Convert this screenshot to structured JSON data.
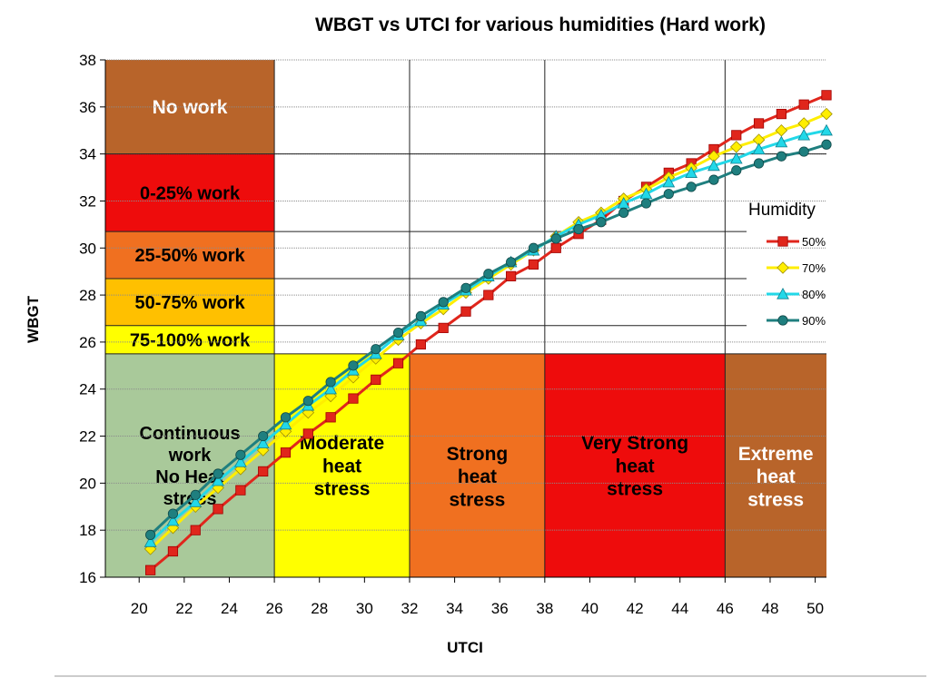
{
  "chart_data": {
    "type": "line",
    "title": "WBGT vs UTCI for various humidities   (Hard work)",
    "xlabel": "UTCI",
    "ylabel": "WBGT",
    "xlim": [
      18.5,
      50.5
    ],
    "ylim": [
      16,
      38
    ],
    "xticks": [
      20,
      22,
      24,
      26,
      28,
      30,
      32,
      34,
      36,
      38,
      40,
      42,
      44,
      46,
      48,
      50
    ],
    "yticks": [
      16,
      18,
      20,
      22,
      24,
      26,
      28,
      30,
      32,
      34,
      36,
      38
    ],
    "grid": true,
    "legend": {
      "title": "Humidity",
      "placement": "right"
    },
    "x": [
      20.5,
      21.5,
      22.5,
      23.5,
      24.5,
      25.5,
      26.5,
      27.5,
      28.5,
      29.5,
      30.5,
      31.5,
      32.5,
      33.5,
      34.5,
      35.5,
      36.5,
      37.5,
      38.5,
      39.5,
      40.5,
      41.5,
      42.5,
      43.5,
      44.5,
      45.5,
      46.5,
      47.5,
      48.5,
      49.5,
      50.5
    ],
    "series": [
      {
        "name": "50%",
        "color": "#e0261c",
        "marker": "square",
        "values": [
          16.3,
          17.1,
          18.0,
          18.9,
          19.7,
          20.5,
          21.3,
          22.1,
          22.8,
          23.6,
          24.4,
          25.1,
          25.9,
          26.6,
          27.3,
          28.0,
          28.8,
          29.3,
          30.0,
          30.6,
          31.2,
          32.0,
          32.6,
          33.2,
          33.6,
          34.2,
          34.8,
          35.3,
          35.7,
          36.1,
          36.5
        ]
      },
      {
        "name": "70%",
        "color": "#ffee00",
        "marker": "diamond",
        "values": [
          17.2,
          18.1,
          19.0,
          19.8,
          20.6,
          21.4,
          22.2,
          23.0,
          23.7,
          24.5,
          25.3,
          26.1,
          26.8,
          27.4,
          28.1,
          28.7,
          29.3,
          29.9,
          30.5,
          31.1,
          31.5,
          32.1,
          32.5,
          33.0,
          33.4,
          33.9,
          34.3,
          34.6,
          35.0,
          35.3,
          35.7
        ]
      },
      {
        "name": "80%",
        "color": "#22d8e8",
        "marker": "triangle",
        "values": [
          17.5,
          18.4,
          19.2,
          20.1,
          20.9,
          21.7,
          22.5,
          23.3,
          24.0,
          24.8,
          25.5,
          26.3,
          26.9,
          27.6,
          28.2,
          28.8,
          29.4,
          29.9,
          30.5,
          31.0,
          31.4,
          31.9,
          32.3,
          32.8,
          33.2,
          33.5,
          33.8,
          34.2,
          34.5,
          34.8,
          35.0
        ]
      },
      {
        "name": "90%",
        "color": "#1f7f7f",
        "marker": "circle",
        "values": [
          17.8,
          18.7,
          19.5,
          20.4,
          21.2,
          22.0,
          22.8,
          23.5,
          24.3,
          25.0,
          25.7,
          26.4,
          27.1,
          27.7,
          28.3,
          28.9,
          29.4,
          30.0,
          30.4,
          30.8,
          31.1,
          31.5,
          31.9,
          32.3,
          32.6,
          32.9,
          33.3,
          33.6,
          33.9,
          34.1,
          34.4
        ]
      }
    ],
    "zones": [
      {
        "label": [
          "No work"
        ],
        "x0": 18.5,
        "x1": 26,
        "y0": 34,
        "y1": 38,
        "color": "#b8642a",
        "text_color": "#ffffff",
        "fs": 21
      },
      {
        "label": [
          "0-25% work"
        ],
        "x0": 18.5,
        "x1": 26,
        "y0": 30.7,
        "y1": 34,
        "color": "#ee0c0c",
        "text_color": "#000000",
        "fs": 20
      },
      {
        "label": [
          "25-50% work"
        ],
        "x0": 18.5,
        "x1": 26,
        "y0": 28.7,
        "y1": 30.7,
        "color": "#f07020",
        "text_color": "#000000",
        "fs": 20
      },
      {
        "label": [
          "50-75% work"
        ],
        "x0": 18.5,
        "x1": 26,
        "y0": 26.7,
        "y1": 28.7,
        "color": "#ffc000",
        "text_color": "#000000",
        "fs": 20
      },
      {
        "label": [
          "75-100% work"
        ],
        "x0": 18.5,
        "x1": 26,
        "y0": 25.5,
        "y1": 26.7,
        "color": "#ffff00",
        "text_color": "#000000",
        "fs": 20
      },
      {
        "label": [
          "Continuous",
          "work",
          "No Heat",
          "stress"
        ],
        "x0": 18.5,
        "x1": 26,
        "y0": 16,
        "y1": 25.5,
        "color": "#a9c99a",
        "text_color": "#000000",
        "fs": 20
      },
      {
        "label": [
          "Moderate",
          "heat",
          "stress"
        ],
        "x0": 26,
        "x1": 32,
        "y0": 16,
        "y1": 25.5,
        "color": "#ffff00",
        "text_color": "#000000",
        "fs": 21
      },
      {
        "label": [
          "Strong",
          "heat",
          "stress"
        ],
        "x0": 32,
        "x1": 38,
        "y0": 16,
        "y1": 25.5,
        "color": "#f07020",
        "text_color": "#000000",
        "fs": 21
      },
      {
        "label": [
          "Very Strong",
          "heat",
          "stress"
        ],
        "x0": 38,
        "x1": 46,
        "y0": 16,
        "y1": 25.5,
        "color": "#ee0c0c",
        "text_color": "#000000",
        "fs": 21
      },
      {
        "label": [
          "Extreme",
          "heat",
          "stress"
        ],
        "x0": 46,
        "x1": 50.5,
        "y0": 16,
        "y1": 25.5,
        "color": "#b8642a",
        "text_color": "#ffffff",
        "fs": 21
      }
    ]
  }
}
